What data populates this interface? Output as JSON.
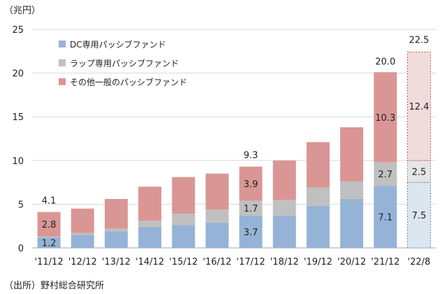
{
  "unit_label": "（兆円）",
  "source": "（出所）野村総合研究所",
  "chart_data": {
    "type": "bar",
    "stacked": true,
    "categories": [
      "'11/12",
      "'12/12",
      "'13/12",
      "'14/12",
      "'15/12",
      "'16/12",
      "'17/12",
      "'18/12",
      "'19/12",
      "'20/12",
      "'21/12",
      "'22/8"
    ],
    "series": [
      {
        "name": "DC専用パッシブファンド",
        "color": "#95b3d7",
        "values": [
          1.2,
          1.5,
          1.9,
          2.4,
          2.6,
          2.9,
          3.7,
          3.7,
          4.8,
          5.6,
          7.1,
          7.5
        ]
      },
      {
        "name": "ラップ専用パッシブファンド",
        "color": "#c0c0c0",
        "values": [
          0.1,
          0.2,
          0.3,
          0.7,
          1.3,
          1.5,
          1.7,
          1.8,
          2.1,
          2.0,
          2.7,
          2.5
        ]
      },
      {
        "name": "その他一般のパッシブファンド",
        "color": "#d99694",
        "values": [
          2.8,
          2.8,
          3.4,
          3.9,
          4.2,
          4.1,
          3.9,
          4.5,
          5.2,
          6.2,
          10.3,
          12.4
        ]
      }
    ],
    "totals": [
      4.1,
      4.5,
      5.6,
      7.0,
      8.1,
      8.5,
      9.3,
      10.0,
      12.1,
      13.8,
      20.0,
      22.5
    ],
    "yticks": [
      0,
      5,
      10,
      15,
      20,
      25
    ],
    "ylim": [
      0,
      25
    ],
    "grid": true,
    "legend": "top-left",
    "highlighted_last_bar": {
      "category": "'22/8",
      "colors": [
        "#dce6f1",
        "#e6e6e6",
        "#f2dcdb"
      ],
      "outline": "dashed"
    },
    "data_labels": [
      {
        "category": "'11/12",
        "series": 0,
        "text": "1.2"
      },
      {
        "category": "'11/12",
        "series": 2,
        "text": "2.8"
      },
      {
        "category": "'11/12",
        "series": "total",
        "text": "4.1"
      },
      {
        "category": "'17/12",
        "series": 0,
        "text": "3.7"
      },
      {
        "category": "'17/12",
        "series": 1,
        "text": "1.7"
      },
      {
        "category": "'17/12",
        "series": 2,
        "text": "3.9"
      },
      {
        "category": "'17/12",
        "series": "total",
        "text": "9.3"
      },
      {
        "category": "'21/12",
        "series": 0,
        "text": "7.1"
      },
      {
        "category": "'21/12",
        "series": 1,
        "text": "2.7"
      },
      {
        "category": "'21/12",
        "series": 2,
        "text": "10.3"
      },
      {
        "category": "'21/12",
        "series": "total",
        "text": "20.0"
      },
      {
        "category": "'22/8",
        "series": 0,
        "text": "7.5"
      },
      {
        "category": "'22/8",
        "series": 1,
        "text": "2.5"
      },
      {
        "category": "'22/8",
        "series": 2,
        "text": "12.4"
      },
      {
        "category": "'22/8",
        "series": "total",
        "text": "22.5"
      }
    ]
  }
}
